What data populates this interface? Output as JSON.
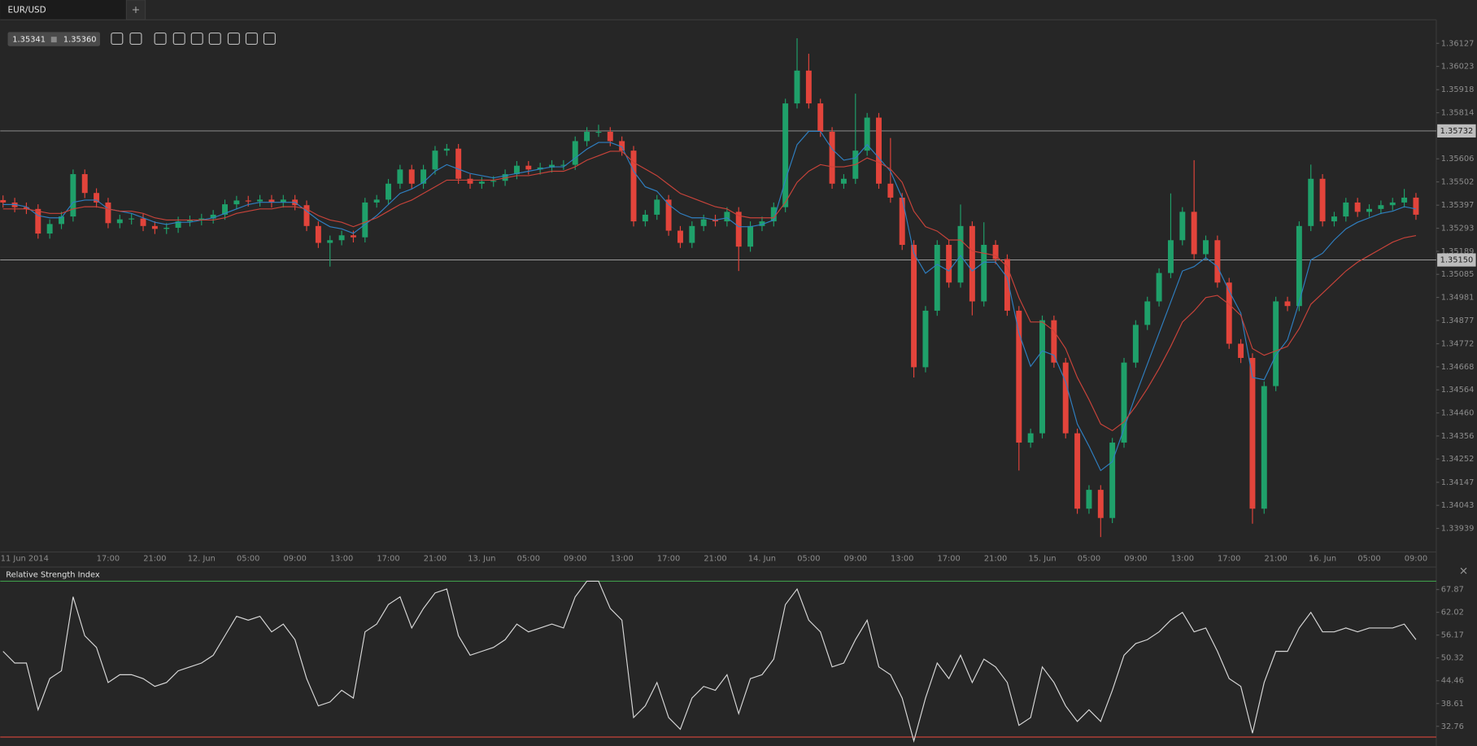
{
  "tab": {
    "symbol": "EUR/USD",
    "add": "+"
  },
  "quote": {
    "bid": "1.35341",
    "ask": "1.35360"
  },
  "chart_data": [
    {
      "type": "candlestick",
      "categories": [
        null,
        "11 Jun 2014",
        null,
        null,
        null,
        null,
        null,
        null,
        null,
        "17:00",
        null,
        null,
        null,
        "21:00",
        null,
        null,
        null,
        "12. Jun",
        null,
        null,
        null,
        "05:00",
        null,
        null,
        null,
        "09:00",
        null,
        null,
        null,
        "13:00",
        null,
        null,
        null,
        "17:00",
        null,
        null,
        null,
        "21:00",
        null,
        null,
        null,
        "13. Jun",
        null,
        null,
        null,
        "05:00",
        null,
        null,
        null,
        "09:00",
        null,
        null,
        null,
        "13:00",
        null,
        null,
        null,
        "17:00",
        null,
        null,
        null,
        "21:00",
        null,
        null,
        null,
        "14. Jun",
        null,
        null,
        null,
        "05:00",
        null,
        null,
        null,
        "09:00",
        null,
        null,
        null,
        "13:00",
        null,
        null,
        null,
        "17:00",
        null,
        null,
        null,
        "21:00",
        null,
        null,
        null,
        "15. Jun",
        null,
        null,
        null,
        "05:00",
        null,
        null,
        null,
        "09:00",
        null,
        null,
        null,
        "13:00",
        null,
        null,
        null,
        "17:00",
        null,
        null,
        null,
        "21:00",
        null,
        null,
        null,
        "16. Jun",
        null,
        null,
        null,
        "05:00",
        null,
        null,
        null,
        "09:00"
      ],
      "open": [
        1.3542,
        1.35409,
        1.35388,
        1.3538,
        1.35269,
        1.35312,
        1.35346,
        1.35537,
        1.35452,
        1.35409,
        1.35316,
        1.35333,
        1.35337,
        1.35303,
        1.3529,
        1.35295,
        1.35324,
        1.35329,
        1.35337,
        1.35354,
        1.35401,
        1.35418,
        1.35414,
        1.35422,
        1.35409,
        1.35422,
        1.35397,
        1.35303,
        1.35227,
        1.35239,
        1.35261,
        1.35252,
        1.35409,
        1.35422,
        1.35494,
        1.35558,
        1.35494,
        1.35558,
        1.35643,
        1.35652,
        1.35516,
        1.35494,
        1.35503,
        1.35507,
        1.35537,
        1.35575,
        1.35558,
        1.35567,
        1.35579,
        1.35579,
        1.35686,
        1.35728,
        1.35728,
        1.35686,
        1.35643,
        1.35324,
        1.35354,
        1.35422,
        1.35282,
        1.35227,
        1.35303,
        1.35333,
        1.35324,
        1.35367,
        1.3521,
        1.35303,
        1.35324,
        1.35388,
        1.35856,
        1.36004,
        1.35856,
        1.35728,
        1.35494,
        1.35516,
        1.35643,
        1.35792,
        1.35494,
        1.35431,
        1.35218,
        1.34666,
        1.34921,
        1.35218,
        1.35048,
        1.35303,
        1.34963,
        1.35218,
        1.35154,
        1.34921,
        1.34326,
        1.34368,
        1.34878,
        1.34687,
        1.34368,
        1.34028,
        1.34113,
        1.33986,
        1.34326,
        1.34687,
        1.34857,
        1.34963,
        1.35091,
        1.35239,
        1.35367,
        1.35176,
        1.35239,
        1.35048,
        1.34772,
        1.34708,
        1.34028,
        1.34581,
        1.34963,
        1.34942,
        1.35303,
        1.35516,
        1.35324,
        1.35346,
        1.35409,
        1.35367,
        1.3538,
        1.35397,
        1.35409,
        1.35431
      ],
      "high": [
        1.35441,
        1.3543,
        1.35409,
        1.35401,
        1.35333,
        1.35367,
        1.35558,
        1.35558,
        1.35473,
        1.3543,
        1.35354,
        1.35358,
        1.35358,
        1.35324,
        1.35316,
        1.35345,
        1.3535,
        1.35358,
        1.35375,
        1.35422,
        1.35439,
        1.35439,
        1.35443,
        1.35443,
        1.35443,
        1.35443,
        1.35418,
        1.35324,
        1.3526,
        1.35282,
        1.35282,
        1.3543,
        1.35443,
        1.35515,
        1.35579,
        1.35579,
        1.35579,
        1.35664,
        1.35673,
        1.35673,
        1.35537,
        1.35524,
        1.35528,
        1.35558,
        1.35596,
        1.35596,
        1.35588,
        1.356,
        1.356,
        1.35707,
        1.35749,
        1.3576,
        1.35749,
        1.35707,
        1.35664,
        1.35375,
        1.35443,
        1.35443,
        1.35303,
        1.35324,
        1.35354,
        1.35354,
        1.35388,
        1.35388,
        1.35324,
        1.35345,
        1.35409,
        1.35877,
        1.3615,
        1.3608,
        1.35877,
        1.35749,
        1.35537,
        1.359,
        1.35813,
        1.35813,
        1.357,
        1.35452,
        1.35239,
        1.34942,
        1.35239,
        1.35239,
        1.354,
        1.35324,
        1.3532,
        1.35239,
        1.35175,
        1.34942,
        1.34389,
        1.34899,
        1.34899,
        1.34708,
        1.34389,
        1.34134,
        1.34134,
        1.34347,
        1.34708,
        1.34878,
        1.34984,
        1.35112,
        1.3545,
        1.35388,
        1.356,
        1.3526,
        1.3526,
        1.35069,
        1.34793,
        1.34729,
        1.34602,
        1.34984,
        1.34984,
        1.35324,
        1.3558,
        1.35537,
        1.35367,
        1.3543,
        1.3543,
        1.35401,
        1.35418,
        1.3543,
        1.3547,
        1.35452
      ],
      "low": [
        1.35386,
        1.35365,
        1.35357,
        1.35246,
        1.35246,
        1.35289,
        1.35323,
        1.35429,
        1.35386,
        1.35293,
        1.35293,
        1.3531,
        1.3528,
        1.35267,
        1.35267,
        1.35272,
        1.35301,
        1.35306,
        1.35314,
        1.35331,
        1.35378,
        1.35391,
        1.35391,
        1.35386,
        1.35386,
        1.35374,
        1.3528,
        1.35204,
        1.3512,
        1.35216,
        1.35229,
        1.35229,
        1.35386,
        1.35399,
        1.35471,
        1.35471,
        1.35471,
        1.35535,
        1.3562,
        1.35493,
        1.35471,
        1.35471,
        1.3548,
        1.35484,
        1.35514,
        1.35535,
        1.35535,
        1.35544,
        1.35556,
        1.35556,
        1.35663,
        1.35705,
        1.35663,
        1.3562,
        1.35301,
        1.35301,
        1.35331,
        1.35259,
        1.35204,
        1.35204,
        1.3528,
        1.35301,
        1.35301,
        1.351,
        1.35187,
        1.3528,
        1.35301,
        1.35365,
        1.35833,
        1.35833,
        1.35705,
        1.35471,
        1.35471,
        1.35493,
        1.3562,
        1.35471,
        1.35408,
        1.35195,
        1.3462,
        1.34643,
        1.34898,
        1.35025,
        1.35025,
        1.349,
        1.3494,
        1.35131,
        1.34898,
        1.342,
        1.34303,
        1.34345,
        1.34664,
        1.34345,
        1.34005,
        1.34005,
        1.339,
        1.33963,
        1.34303,
        1.34664,
        1.34834,
        1.3494,
        1.35068,
        1.35216,
        1.35153,
        1.35153,
        1.35025,
        1.34749,
        1.34685,
        1.3396,
        1.34005,
        1.34558,
        1.34919,
        1.34919,
        1.3528,
        1.35301,
        1.35301,
        1.35323,
        1.35344,
        1.35344,
        1.35357,
        1.35374,
        1.35386,
        1.35331
      ],
      "close": [
        1.35409,
        1.35388,
        1.3538,
        1.35269,
        1.35312,
        1.35346,
        1.35537,
        1.35452,
        1.35409,
        1.35316,
        1.35333,
        1.35337,
        1.35303,
        1.3529,
        1.35295,
        1.35324,
        1.35329,
        1.35337,
        1.35354,
        1.35401,
        1.35418,
        1.35414,
        1.35422,
        1.35409,
        1.35422,
        1.35397,
        1.35303,
        1.35227,
        1.35239,
        1.35261,
        1.35252,
        1.35409,
        1.35422,
        1.35494,
        1.35558,
        1.35494,
        1.35558,
        1.35643,
        1.35652,
        1.35516,
        1.35494,
        1.35503,
        1.35507,
        1.35537,
        1.35575,
        1.35558,
        1.35567,
        1.35579,
        1.35579,
        1.35686,
        1.35728,
        1.35728,
        1.35686,
        1.35643,
        1.35324,
        1.35354,
        1.35422,
        1.35282,
        1.35227,
        1.35303,
        1.35333,
        1.35324,
        1.35367,
        1.3521,
        1.35303,
        1.35324,
        1.35388,
        1.35856,
        1.36004,
        1.35856,
        1.35728,
        1.35494,
        1.35516,
        1.35643,
        1.35792,
        1.35494,
        1.35431,
        1.35218,
        1.34666,
        1.34921,
        1.35218,
        1.35048,
        1.35303,
        1.34963,
        1.35218,
        1.35154,
        1.34921,
        1.34326,
        1.34368,
        1.34878,
        1.34687,
        1.34368,
        1.34028,
        1.34113,
        1.33986,
        1.34326,
        1.34687,
        1.34857,
        1.34963,
        1.35091,
        1.35239,
        1.35367,
        1.35176,
        1.35239,
        1.35048,
        1.34772,
        1.34708,
        1.34028,
        1.34581,
        1.34963,
        1.34942,
        1.35303,
        1.35516,
        1.35324,
        1.35346,
        1.35409,
        1.35367,
        1.3538,
        1.35397,
        1.35409,
        1.35431,
        1.35354
      ],
      "up_color": "#1fa06a",
      "down_color": "#e2443b",
      "overlays": [
        {
          "color": "#2f7fc1",
          "values": [
            1.354,
            1.354,
            1.3539,
            1.3535,
            1.3534,
            1.3534,
            1.3541,
            1.3542,
            1.3542,
            1.3538,
            1.3537,
            1.3536,
            1.3534,
            1.3532,
            1.3531,
            1.3532,
            1.3532,
            1.3533,
            1.3534,
            1.3536,
            1.3538,
            1.354,
            1.3541,
            1.3541,
            1.3541,
            1.3541,
            1.3537,
            1.3533,
            1.353,
            1.3529,
            1.3527,
            1.3531,
            1.3535,
            1.354,
            1.3545,
            1.3547,
            1.355,
            1.3555,
            1.3558,
            1.3556,
            1.3554,
            1.3553,
            1.3552,
            1.3553,
            1.3554,
            1.3555,
            1.3556,
            1.3557,
            1.3557,
            1.3561,
            1.3565,
            1.3568,
            1.3568,
            1.3566,
            1.3555,
            1.3548,
            1.3546,
            1.354,
            1.3536,
            1.3534,
            1.3534,
            1.3533,
            1.3534,
            1.353,
            1.353,
            1.3531,
            1.3533,
            1.3551,
            1.3567,
            1.3573,
            1.3573,
            1.3565,
            1.356,
            1.3561,
            1.3567,
            1.3561,
            1.3555,
            1.3543,
            1.3518,
            1.3509,
            1.3513,
            1.351,
            1.3517,
            1.351,
            1.3514,
            1.3514,
            1.3507,
            1.3482,
            1.3467,
            1.3474,
            1.3472,
            1.346,
            1.3441,
            1.3431,
            1.342,
            1.3424,
            1.3439,
            1.3454,
            1.3468,
            1.3482,
            1.3496,
            1.351,
            1.3512,
            1.3516,
            1.3512,
            1.3501,
            1.3491,
            1.3462,
            1.3461,
            1.3472,
            1.3479,
            1.3496,
            1.3515,
            1.3518,
            1.3524,
            1.3529,
            1.3532,
            1.3534,
            1.3536,
            1.3537,
            1.3539,
            1.3538
          ]
        },
        {
          "color": "#c8433a",
          "values": [
            1.3538,
            1.3538,
            1.3538,
            1.3537,
            1.3536,
            1.3536,
            1.3538,
            1.3539,
            1.3539,
            1.3538,
            1.3537,
            1.3537,
            1.3536,
            1.3534,
            1.3533,
            1.3533,
            1.3533,
            1.3533,
            1.3533,
            1.3534,
            1.3536,
            1.3537,
            1.3538,
            1.3538,
            1.3539,
            1.3539,
            1.3538,
            1.3535,
            1.3533,
            1.3532,
            1.353,
            1.3532,
            1.3534,
            1.3537,
            1.354,
            1.3542,
            1.3545,
            1.3548,
            1.3551,
            1.3551,
            1.3551,
            1.3551,
            1.3551,
            1.3552,
            1.3553,
            1.3553,
            1.3554,
            1.3555,
            1.3555,
            1.3557,
            1.356,
            1.3562,
            1.3564,
            1.3564,
            1.3559,
            1.3556,
            1.3553,
            1.3549,
            1.3545,
            1.3543,
            1.3541,
            1.3539,
            1.3538,
            1.3535,
            1.3534,
            1.3534,
            1.3534,
            1.3541,
            1.355,
            1.3555,
            1.3558,
            1.3557,
            1.3557,
            1.3558,
            1.3561,
            1.3559,
            1.3556,
            1.355,
            1.3537,
            1.353,
            1.3528,
            1.3524,
            1.3524,
            1.3519,
            1.3518,
            1.3517,
            1.3512,
            1.3498,
            1.3487,
            1.3487,
            1.3483,
            1.3475,
            1.3462,
            1.3452,
            1.3441,
            1.3438,
            1.3442,
            1.3449,
            1.3457,
            1.3466,
            1.3476,
            1.3487,
            1.3492,
            1.3498,
            1.3499,
            1.3495,
            1.349,
            1.3475,
            1.3472,
            1.3474,
            1.3476,
            1.3484,
            1.3495,
            1.35,
            1.3505,
            1.351,
            1.3514,
            1.3517,
            1.352,
            1.3523,
            1.3525,
            1.3526
          ]
        }
      ],
      "hlines": [
        1.35732,
        {
          "value": 1.3515,
          "label": "1.35150"
        }
      ],
      "ylim": [
        1.33837,
        1.36229
      ],
      "yticks": [
        1.36127,
        1.36023,
        1.35918,
        1.35814,
        1.35606,
        1.35502,
        1.35397,
        1.35293,
        1.35189,
        1.35085,
        1.34981,
        1.34877,
        1.34772,
        1.34668,
        1.34564,
        {
          "value": 1.3446,
          "label": "1.34460"
        },
        1.34356,
        1.34252,
        1.34147,
        1.34043,
        1.33939
      ]
    },
    {
      "type": "line",
      "title": "Relative Strength Index",
      "color": "#d8d8d8",
      "values": [
        52,
        49,
        49,
        37,
        45,
        47,
        66,
        56,
        53,
        44,
        46,
        46,
        45,
        43,
        44,
        47,
        48,
        49,
        51,
        56,
        61,
        60,
        61,
        57,
        59,
        55,
        45,
        38,
        39,
        42,
        40,
        57,
        59,
        64,
        66,
        58,
        63,
        67,
        68,
        56,
        51,
        52,
        53,
        55,
        59,
        57,
        58,
        59,
        58,
        66,
        70,
        70,
        63,
        60,
        35,
        38,
        44,
        35,
        32,
        40,
        43,
        42,
        46,
        36,
        45,
        46,
        50,
        64,
        68,
        60,
        57,
        48,
        49,
        55,
        60,
        48,
        46,
        40,
        29,
        40,
        49,
        45,
        51,
        44,
        50,
        48,
        44,
        33,
        35,
        48,
        44,
        38,
        34,
        37,
        34,
        42,
        51,
        54,
        55,
        57,
        60,
        62,
        57,
        58,
        52,
        45,
        43,
        31,
        44,
        52,
        52,
        58,
        62,
        57,
        57,
        58,
        57,
        58,
        58,
        58,
        59,
        55
      ],
      "levels": [
        {
          "value": 70,
          "color": "#3e9a4a"
        },
        {
          "value": 30,
          "color": "#c8433a"
        }
      ],
      "ylim": [
        27.7,
        73.4
      ],
      "yticks": [
        67.87,
        62.02,
        56.17,
        50.32,
        44.46,
        38.61,
        32.76
      ]
    }
  ]
}
